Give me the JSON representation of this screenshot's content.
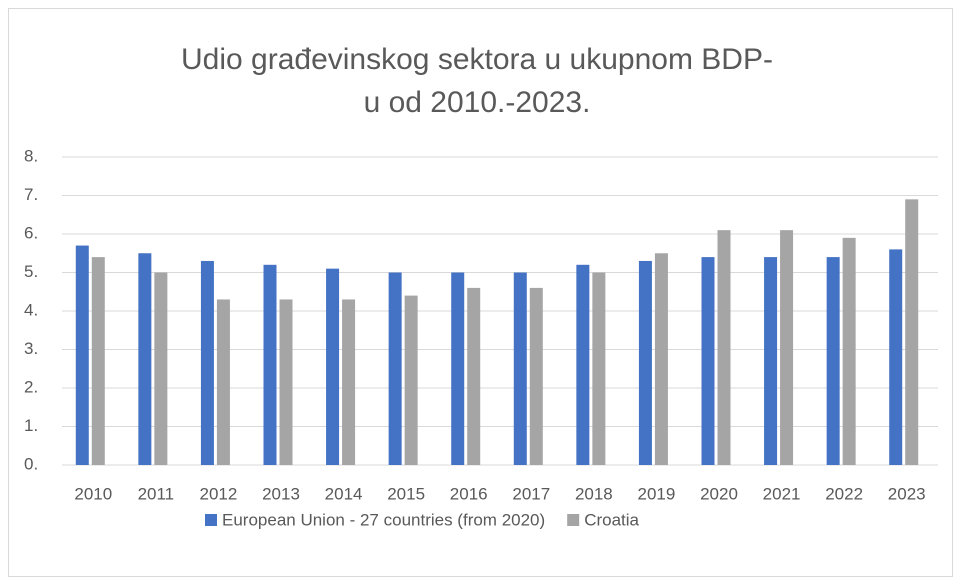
{
  "chart_data": {
    "type": "bar",
    "title": "Udio građevinskog sektora u ukupnom BDP-u od 2010.-2023.",
    "categories": [
      "2010",
      "2011",
      "2012",
      "2013",
      "2014",
      "2015",
      "2016",
      "2017",
      "2018",
      "2019",
      "2020",
      "2021",
      "2022",
      "2023"
    ],
    "series": [
      {
        "name": "European Union - 27 countries (from 2020)",
        "color": "#4472c4",
        "values": [
          5.7,
          5.5,
          5.3,
          5.2,
          5.1,
          5.0,
          5.0,
          5.0,
          5.2,
          5.3,
          5.4,
          5.4,
          5.4,
          5.6
        ]
      },
      {
        "name": "Croatia",
        "color": "#a5a5a5",
        "values": [
          5.4,
          5.0,
          4.3,
          4.3,
          4.3,
          4.4,
          4.6,
          4.6,
          5.0,
          5.5,
          6.1,
          6.1,
          5.9,
          6.9
        ]
      }
    ],
    "ylim": [
      0,
      8
    ],
    "yticks": [
      {
        "value": 0,
        "label": "0."
      },
      {
        "value": 1,
        "label": "1."
      },
      {
        "value": 2,
        "label": "2."
      },
      {
        "value": 3,
        "label": "3."
      },
      {
        "value": 4,
        "label": "4."
      },
      {
        "value": 5,
        "label": "5."
      },
      {
        "value": 6,
        "label": "6."
      },
      {
        "value": 7,
        "label": "7."
      },
      {
        "value": 8,
        "label": "8."
      }
    ],
    "grid": true,
    "legend": "bottom"
  }
}
